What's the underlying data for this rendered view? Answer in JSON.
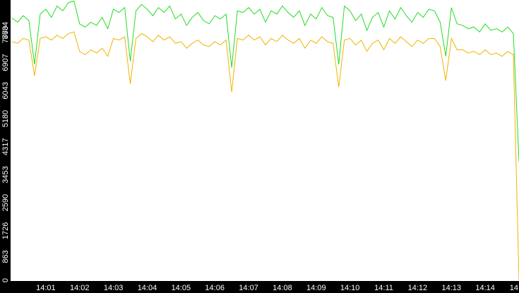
{
  "chart_data": {
    "type": "line",
    "categories": [
      null,
      null,
      null,
      null,
      null,
      null,
      "14:01",
      null,
      null,
      null,
      null,
      null,
      "14:02",
      null,
      null,
      null,
      null,
      null,
      "14:03",
      null,
      null,
      null,
      null,
      null,
      "14:04",
      null,
      null,
      null,
      null,
      null,
      "14:05",
      null,
      null,
      null,
      null,
      null,
      "14:06",
      null,
      null,
      null,
      null,
      null,
      "14:07",
      null,
      null,
      null,
      null,
      null,
      "14:08",
      null,
      null,
      null,
      null,
      null,
      "14:09",
      null,
      null,
      null,
      null,
      null,
      "14:10",
      null,
      null,
      null,
      null,
      null,
      "14:11",
      null,
      null,
      null,
      null,
      null,
      "14:12",
      null,
      null,
      null,
      null,
      null,
      "14:13",
      null,
      null,
      null,
      null,
      null,
      "14:14",
      null,
      null,
      null,
      null,
      null,
      "14"
    ],
    "series": [
      {
        "name": null,
        "color": "#22dd22",
        "values": [
          8080,
          7950,
          8150,
          8000,
          6650,
          8200,
          8350,
          8100,
          8450,
          8300,
          8550,
          8600,
          7900,
          7800,
          7950,
          7850,
          8100,
          7750,
          8350,
          8250,
          8400,
          6750,
          8300,
          8500,
          8350,
          8150,
          8400,
          8250,
          8450,
          8050,
          8200,
          7850,
          8100,
          8250,
          8000,
          7900,
          8150,
          8050,
          8200,
          6550,
          8300,
          8250,
          8400,
          8200,
          8350,
          7950,
          8300,
          8200,
          8450,
          8250,
          8100,
          8300,
          7850,
          8200,
          8050,
          8400,
          8150,
          8100,
          6650,
          8450,
          8300,
          8000,
          8200,
          7700,
          8100,
          8250,
          7800,
          8300,
          8050,
          8400,
          8150,
          7950,
          8250,
          8100,
          8350,
          8300,
          7950,
          6900,
          8400,
          7900,
          7850,
          7750,
          7800,
          7650,
          7900,
          7700,
          7750,
          7650,
          7800,
          7600,
          3650
        ]
      },
      {
        "name": null,
        "color": "#f0b400",
        "values": [
          7350,
          7300,
          7450,
          7400,
          6300,
          7450,
          7500,
          7400,
          7550,
          7450,
          7600,
          7650,
          7050,
          6950,
          7100,
          7000,
          7150,
          6900,
          7450,
          7400,
          7500,
          6050,
          7450,
          7600,
          7500,
          7350,
          7550,
          7400,
          7500,
          7300,
          7350,
          7150,
          7300,
          7400,
          7250,
          7200,
          7350,
          7250,
          7400,
          5800,
          7450,
          7400,
          7550,
          7400,
          7500,
          7250,
          7450,
          7350,
          7550,
          7400,
          7300,
          7450,
          7150,
          7400,
          7300,
          7500,
          7350,
          7300,
          5950,
          7400,
          7450,
          7250,
          7400,
          7050,
          7300,
          7400,
          7100,
          7450,
          7300,
          7500,
          7350,
          7200,
          7400,
          7300,
          7450,
          7450,
          7200,
          6150,
          7450,
          7100,
          7100,
          7000,
          7050,
          6950,
          7100,
          6950,
          7000,
          6900,
          7050,
          6950,
          0
        ]
      }
    ],
    "ylim": [
      0,
      8634
    ],
    "yticks": [
      0,
      863,
      1726,
      2590,
      3453,
      4317,
      5180,
      6043,
      6907,
      7770,
      8634
    ]
  }
}
